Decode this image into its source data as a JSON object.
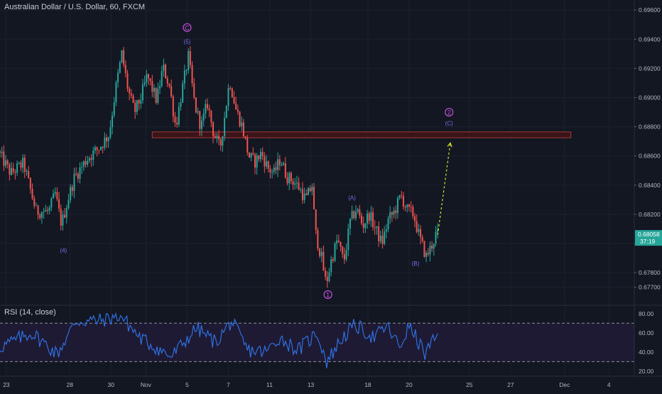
{
  "symbol_title": "Australian Dollar / U.S. Dollar, 60, FXCM",
  "rsi_title": "RSI (14, close)",
  "colors": {
    "background": "#131722",
    "up": "#26a69a",
    "down": "#ef5350",
    "zone_fill": "#3a1418",
    "zone_stroke": "#a53a3a",
    "wave_label": "#7a6cf0",
    "circle_label": "#c34fdc",
    "projection": "#d4e32a",
    "rsi_line": "#2f6fe0",
    "rsi_band": "#1e1a33",
    "price_badge": "#26a69a"
  },
  "chart_data": [
    {
      "type": "candlestick",
      "title": "Australian Dollar / U.S. Dollar, 60, FXCM",
      "ylim": [
        0.6765,
        0.6963
      ],
      "xlim": [
        0,
        100
      ],
      "x_ticks": [
        {
          "label": "23",
          "x": 1
        },
        {
          "label": "28",
          "x": 11
        },
        {
          "label": "30",
          "x": 17.5
        },
        {
          "label": "Nov",
          "x": 23
        },
        {
          "label": "5",
          "x": 29.5
        },
        {
          "label": "7",
          "x": 36
        },
        {
          "label": "11",
          "x": 42.5
        },
        {
          "label": "13",
          "x": 49
        },
        {
          "label": "18",
          "x": 58
        },
        {
          "label": "20",
          "x": 64.5
        },
        {
          "label": "25",
          "x": 74
        },
        {
          "label": "27",
          "x": 80.5
        },
        {
          "label": "Dec",
          "x": 89
        },
        {
          "label": "4",
          "x": 96
        }
      ],
      "y_ticks": [
        "0.69600",
        "0.69400",
        "0.69200",
        "0.69000",
        "0.68800",
        "0.68600",
        "0.68400",
        "0.68200",
        "0.68000",
        "0.67800",
        "0.67700"
      ],
      "y_tick_values": [
        0.696,
        0.694,
        0.692,
        0.69,
        0.688,
        0.686,
        0.684,
        0.682,
        0.68,
        0.678,
        0.677
      ],
      "price_path": [
        [
          0,
          0.6863
        ],
        [
          2,
          0.6848
        ],
        [
          4,
          0.6855
        ],
        [
          6,
          0.6822
        ],
        [
          8,
          0.6822
        ],
        [
          9,
          0.6834
        ],
        [
          10,
          0.6813
        ],
        [
          11,
          0.683
        ],
        [
          12,
          0.6845
        ],
        [
          14,
          0.6858
        ],
        [
          16,
          0.6866
        ],
        [
          17.5,
          0.6875
        ],
        [
          18.5,
          0.6905
        ],
        [
          19.5,
          0.693
        ],
        [
          20.5,
          0.6905
        ],
        [
          21.5,
          0.689
        ],
        [
          22.5,
          0.69
        ],
        [
          23.5,
          0.6915
        ],
        [
          25,
          0.6898
        ],
        [
          26,
          0.6921
        ],
        [
          27,
          0.6908
        ],
        [
          28,
          0.688
        ],
        [
          29,
          0.6905
        ],
        [
          30,
          0.6928
        ],
        [
          31,
          0.6895
        ],
        [
          32,
          0.688
        ],
        [
          33,
          0.6896
        ],
        [
          34,
          0.6875
        ],
        [
          35,
          0.6865
        ],
        [
          36.5,
          0.6912
        ],
        [
          37.5,
          0.6892
        ],
        [
          38.5,
          0.688
        ],
        [
          39.5,
          0.686
        ],
        [
          40.5,
          0.6856
        ],
        [
          41.5,
          0.6862
        ],
        [
          42.5,
          0.6852
        ],
        [
          43.5,
          0.6848
        ],
        [
          44.5,
          0.6858
        ],
        [
          45.5,
          0.6846
        ],
        [
          46.5,
          0.6843
        ],
        [
          47.5,
          0.6838
        ],
        [
          48.5,
          0.683
        ],
        [
          49.5,
          0.684
        ],
        [
          50,
          0.6808
        ],
        [
          51,
          0.679
        ],
        [
          51.7,
          0.6772
        ],
        [
          52.5,
          0.6788
        ],
        [
          53.5,
          0.6803
        ],
        [
          54.5,
          0.6787
        ],
        [
          55.5,
          0.6815
        ],
        [
          56.5,
          0.6824
        ],
        [
          57.5,
          0.6812
        ],
        [
          58.5,
          0.682
        ],
        [
          59.5,
          0.681
        ],
        [
          60.5,
          0.68
        ],
        [
          61.5,
          0.6816
        ],
        [
          62.5,
          0.6822
        ],
        [
          63.5,
          0.6833
        ],
        [
          64.5,
          0.6823
        ],
        [
          65.5,
          0.682
        ],
        [
          66.5,
          0.6803
        ],
        [
          67.5,
          0.6791
        ],
        [
          68.5,
          0.68
        ],
        [
          69,
          0.6806
        ]
      ],
      "current_price": "0.68058",
      "countdown": "37:19",
      "resistance_zone": [
        0.68725,
        0.68765
      ],
      "zone_x": [
        24,
        90
      ],
      "projection": [
        [
          69,
          0.6806
        ],
        [
          71,
          0.6869
        ]
      ],
      "wave_labels": [
        {
          "text": "(4)",
          "x": 10,
          "price": 0.6794,
          "kind": "wave"
        },
        {
          "text": "C",
          "x": 29.5,
          "price": 0.6948,
          "kind": "circle"
        },
        {
          "text": "(5)",
          "x": 29.5,
          "price": 0.6937,
          "kind": "wave"
        },
        {
          "text": "1",
          "x": 51.7,
          "price": 0.6765,
          "kind": "circle"
        },
        {
          "text": "(A)",
          "x": 55.5,
          "price": 0.683,
          "kind": "wave"
        },
        {
          "text": "(B)",
          "x": 65.5,
          "price": 0.6785,
          "kind": "wave"
        },
        {
          "text": "2",
          "x": 70.8,
          "price": 0.689,
          "kind": "circle"
        },
        {
          "text": "(C)",
          "x": 70.8,
          "price": 0.6881,
          "kind": "wave"
        }
      ]
    },
    {
      "type": "line",
      "title": "RSI (14, close)",
      "ylim": [
        17,
        85
      ],
      "y_ticks": [
        "80.00",
        "60.00",
        "40.00",
        "20.00"
      ],
      "y_tick_values": [
        80,
        60,
        40,
        20
      ],
      "band": [
        30,
        70
      ],
      "anchors": [
        [
          0,
          45
        ],
        [
          5,
          60
        ],
        [
          9,
          38
        ],
        [
          12,
          72
        ],
        [
          16,
          73
        ],
        [
          19,
          78
        ],
        [
          22,
          55
        ],
        [
          27,
          35
        ],
        [
          31,
          65
        ],
        [
          34,
          50
        ],
        [
          36.5,
          72
        ],
        [
          39,
          42
        ],
        [
          42,
          40
        ],
        [
          44,
          55
        ],
        [
          47,
          42
        ],
        [
          50,
          60
        ],
        [
          51.5,
          30
        ],
        [
          54,
          55
        ],
        [
          56,
          68
        ],
        [
          59,
          55
        ],
        [
          61,
          67
        ],
        [
          63,
          45
        ],
        [
          64.5,
          67
        ],
        [
          66,
          50
        ],
        [
          67,
          38
        ],
        [
          68,
          48
        ],
        [
          69,
          56
        ]
      ]
    }
  ]
}
